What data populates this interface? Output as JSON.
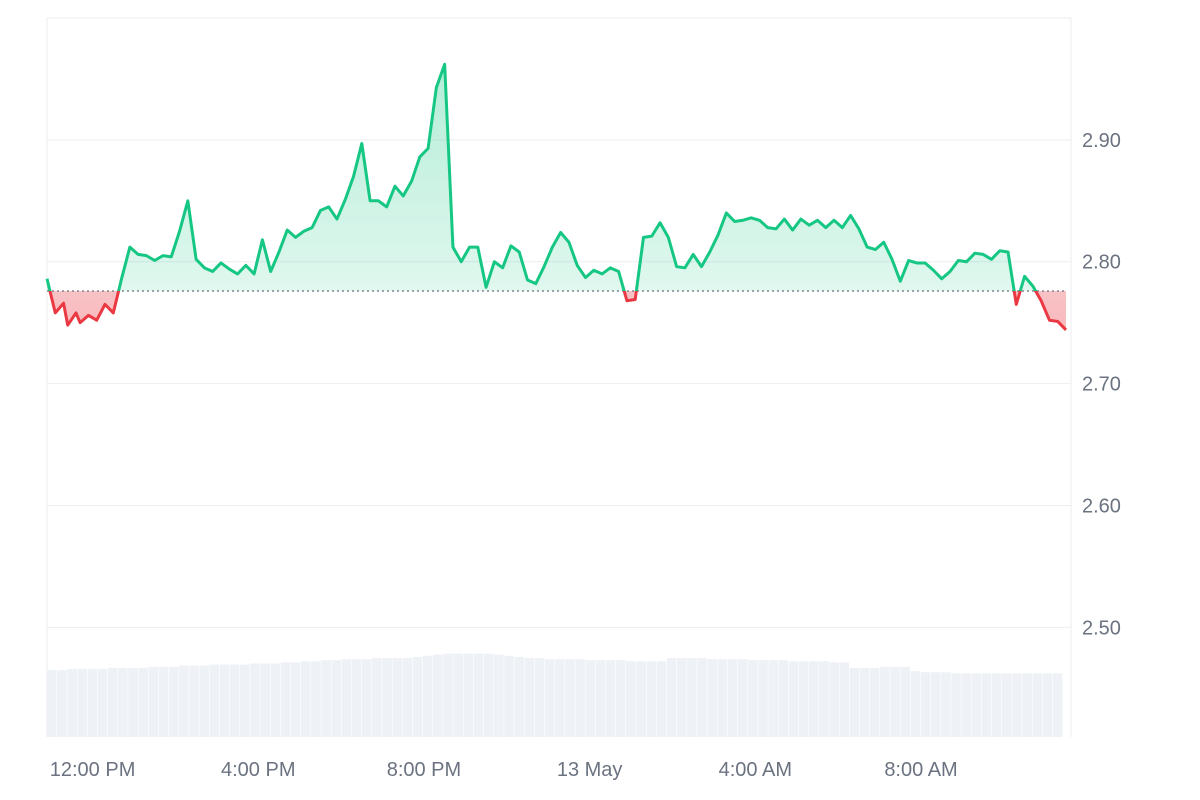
{
  "chart_data": {
    "type": "line",
    "baseline": 2.776,
    "ylim": [
      2.41,
      3.0
    ],
    "y_ticks": [
      {
        "value": 2.9,
        "label": "2.90"
      },
      {
        "value": 2.8,
        "label": "2.80"
      },
      {
        "value": 2.7,
        "label": "2.70"
      },
      {
        "value": 2.6,
        "label": "2.60"
      },
      {
        "value": 2.5,
        "label": "2.50"
      }
    ],
    "x_range_hours": [
      10.9,
      35.5
    ],
    "x_ticks": [
      {
        "hour": 12,
        "label": "12:00 PM"
      },
      {
        "hour": 16,
        "label": "4:00 PM"
      },
      {
        "hour": 20,
        "label": "8:00 PM"
      },
      {
        "hour": 24,
        "label": "13 May"
      },
      {
        "hour": 28,
        "label": "4:00 AM"
      },
      {
        "hour": 32,
        "label": "8:00 AM"
      }
    ],
    "colors": {
      "up": "#16c784",
      "down": "#ea3943",
      "grid": "#eceef1",
      "volume": "#eef1f5",
      "baseline": "#6b7280"
    },
    "series": [
      {
        "points": [
          [
            10.9,
            2.786
          ],
          [
            11.1,
            2.758
          ],
          [
            11.3,
            2.766
          ],
          [
            11.4,
            2.748
          ],
          [
            11.6,
            2.758
          ],
          [
            11.7,
            2.75
          ],
          [
            11.9,
            2.756
          ],
          [
            12.1,
            2.752
          ],
          [
            12.3,
            2.765
          ],
          [
            12.5,
            2.758
          ],
          [
            12.7,
            2.786
          ],
          [
            12.9,
            2.812
          ],
          [
            13.1,
            2.806
          ],
          [
            13.3,
            2.805
          ],
          [
            13.5,
            2.801
          ],
          [
            13.7,
            2.805
          ],
          [
            13.9,
            2.804
          ],
          [
            14.1,
            2.825
          ],
          [
            14.3,
            2.85
          ],
          [
            14.5,
            2.802
          ],
          [
            14.7,
            2.795
          ],
          [
            14.9,
            2.792
          ],
          [
            15.1,
            2.799
          ],
          [
            15.3,
            2.794
          ],
          [
            15.5,
            2.79
          ],
          [
            15.7,
            2.797
          ],
          [
            15.9,
            2.79
          ],
          [
            16.1,
            2.818
          ],
          [
            16.3,
            2.792
          ],
          [
            16.5,
            2.808
          ],
          [
            16.7,
            2.826
          ],
          [
            16.9,
            2.82
          ],
          [
            17.1,
            2.825
          ],
          [
            17.3,
            2.828
          ],
          [
            17.5,
            2.842
          ],
          [
            17.7,
            2.845
          ],
          [
            17.9,
            2.835
          ],
          [
            18.1,
            2.851
          ],
          [
            18.3,
            2.87
          ],
          [
            18.5,
            2.897
          ],
          [
            18.7,
            2.85
          ],
          [
            18.9,
            2.85
          ],
          [
            19.1,
            2.845
          ],
          [
            19.3,
            2.862
          ],
          [
            19.5,
            2.854
          ],
          [
            19.7,
            2.866
          ],
          [
            19.9,
            2.886
          ],
          [
            20.1,
            2.893
          ],
          [
            20.3,
            2.943
          ],
          [
            20.5,
            2.962
          ],
          [
            20.7,
            2.812
          ],
          [
            20.9,
            2.8
          ],
          [
            21.1,
            2.812
          ],
          [
            21.3,
            2.812
          ],
          [
            21.5,
            2.779
          ],
          [
            21.7,
            2.8
          ],
          [
            21.9,
            2.795
          ],
          [
            22.1,
            2.813
          ],
          [
            22.3,
            2.808
          ],
          [
            22.5,
            2.785
          ],
          [
            22.7,
            2.782
          ],
          [
            22.9,
            2.796
          ],
          [
            23.1,
            2.812
          ],
          [
            23.3,
            2.824
          ],
          [
            23.5,
            2.816
          ],
          [
            23.7,
            2.797
          ],
          [
            23.9,
            2.787
          ],
          [
            24.1,
            2.793
          ],
          [
            24.3,
            2.79
          ],
          [
            24.5,
            2.795
          ],
          [
            24.7,
            2.792
          ],
          [
            24.9,
            2.768
          ],
          [
            25.1,
            2.769
          ],
          [
            25.3,
            2.82
          ],
          [
            25.5,
            2.821
          ],
          [
            25.7,
            2.832
          ],
          [
            25.9,
            2.82
          ],
          [
            26.1,
            2.796
          ],
          [
            26.3,
            2.795
          ],
          [
            26.5,
            2.806
          ],
          [
            26.7,
            2.796
          ],
          [
            26.9,
            2.808
          ],
          [
            27.1,
            2.822
          ],
          [
            27.3,
            2.84
          ],
          [
            27.5,
            2.833
          ],
          [
            27.7,
            2.834
          ],
          [
            27.9,
            2.836
          ],
          [
            28.1,
            2.834
          ],
          [
            28.3,
            2.828
          ],
          [
            28.5,
            2.827
          ],
          [
            28.7,
            2.835
          ],
          [
            28.9,
            2.826
          ],
          [
            29.1,
            2.835
          ],
          [
            29.3,
            2.83
          ],
          [
            29.5,
            2.834
          ],
          [
            29.7,
            2.828
          ],
          [
            29.9,
            2.834
          ],
          [
            30.1,
            2.828
          ],
          [
            30.3,
            2.838
          ],
          [
            30.5,
            2.827
          ],
          [
            30.7,
            2.812
          ],
          [
            30.9,
            2.81
          ],
          [
            31.1,
            2.816
          ],
          [
            31.3,
            2.802
          ],
          [
            31.5,
            2.784
          ],
          [
            31.7,
            2.801
          ],
          [
            31.9,
            2.799
          ],
          [
            32.1,
            2.799
          ],
          [
            32.3,
            2.793
          ],
          [
            32.5,
            2.786
          ],
          [
            32.7,
            2.792
          ],
          [
            32.9,
            2.801
          ],
          [
            33.1,
            2.8
          ],
          [
            33.3,
            2.807
          ],
          [
            33.5,
            2.806
          ],
          [
            33.7,
            2.802
          ],
          [
            33.9,
            2.809
          ],
          [
            34.1,
            2.808
          ],
          [
            34.3,
            2.765
          ],
          [
            34.5,
            2.788
          ],
          [
            34.7,
            2.78
          ],
          [
            34.9,
            2.768
          ],
          [
            35.1,
            2.752
          ],
          [
            35.3,
            2.751
          ],
          [
            35.5,
            2.744
          ]
        ]
      }
    ],
    "volume": [
      0.61,
      0.61,
      0.62,
      0.62,
      0.62,
      0.62,
      0.63,
      0.63,
      0.63,
      0.63,
      0.64,
      0.64,
      0.64,
      0.65,
      0.65,
      0.65,
      0.66,
      0.66,
      0.66,
      0.66,
      0.67,
      0.67,
      0.67,
      0.68,
      0.68,
      0.69,
      0.69,
      0.7,
      0.7,
      0.71,
      0.71,
      0.71,
      0.72,
      0.72,
      0.72,
      0.72,
      0.73,
      0.74,
      0.75,
      0.76,
      0.76,
      0.76,
      0.76,
      0.76,
      0.75,
      0.74,
      0.73,
      0.72,
      0.72,
      0.71,
      0.71,
      0.71,
      0.71,
      0.7,
      0.7,
      0.7,
      0.7,
      0.69,
      0.69,
      0.69,
      0.69,
      0.72,
      0.72,
      0.72,
      0.72,
      0.71,
      0.71,
      0.71,
      0.71,
      0.7,
      0.7,
      0.7,
      0.7,
      0.69,
      0.69,
      0.69,
      0.69,
      0.68,
      0.68,
      0.63,
      0.63,
      0.63,
      0.64,
      0.64,
      0.64,
      0.6,
      0.59,
      0.59,
      0.59,
      0.58,
      0.58,
      0.58,
      0.58,
      0.58,
      0.58,
      0.58,
      0.58,
      0.58,
      0.58,
      0.58
    ]
  }
}
